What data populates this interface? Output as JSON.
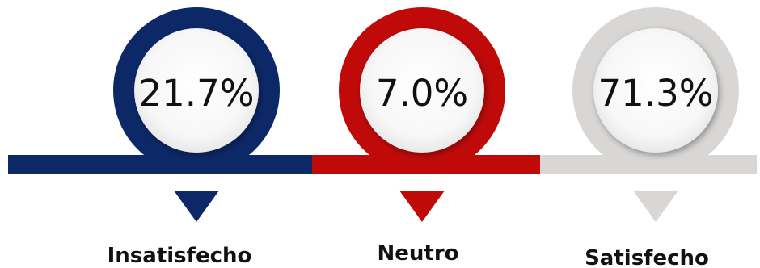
{
  "chart_data": {
    "type": "bar",
    "categories": [
      "Insatisfecho",
      "Neutro",
      "Satisfecho"
    ],
    "values": [
      21.7,
      7.0,
      71.3
    ],
    "value_labels": [
      "21.7%",
      "7.0%",
      "71.3%"
    ],
    "unit": "%",
    "colors": [
      "#0c2866",
      "#c00a0a",
      "#d9d7d5"
    ]
  }
}
